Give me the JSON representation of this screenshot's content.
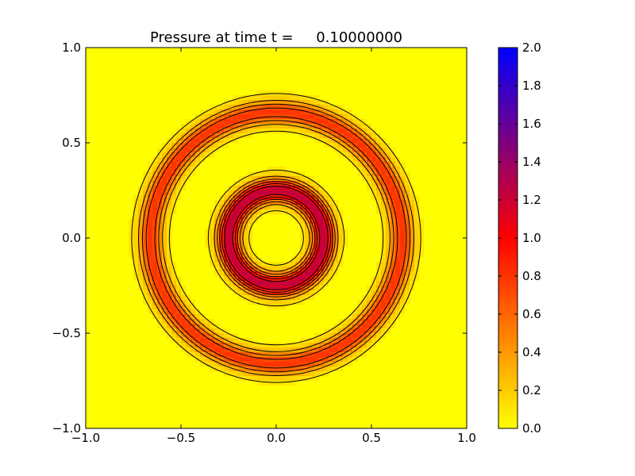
{
  "chart_data": {
    "type": "heatmap",
    "title": "Pressure at time t =     0.10000000",
    "xlabel": "",
    "ylabel": "",
    "xlim": [
      -1.0,
      1.0
    ],
    "ylim": [
      -1.0,
      1.0
    ],
    "x_ticks": [
      "−1.0",
      "−0.5",
      "0.0",
      "0.5",
      "1.0"
    ],
    "x_tick_values": [
      -1.0,
      -0.5,
      0.0,
      0.5,
      1.0
    ],
    "y_ticks": [
      "−1.0",
      "−0.5",
      "0.0",
      "0.5",
      "1.0"
    ],
    "y_tick_values": [
      -1.0,
      -0.5,
      0.0,
      0.5,
      1.0
    ],
    "colorbar": {
      "range": [
        0.0,
        2.0
      ],
      "ticks": [
        "0.0",
        "0.2",
        "0.4",
        "0.6",
        "0.8",
        "1.0",
        "1.2",
        "1.4",
        "1.6",
        "1.8",
        "2.0"
      ],
      "tick_values": [
        0.0,
        0.2,
        0.4,
        0.6,
        0.8,
        1.0,
        1.2,
        1.4,
        1.6,
        1.8,
        2.0
      ],
      "colormap_stops": [
        {
          "value": 0.0,
          "color": "#ffff00"
        },
        {
          "value": 1.0,
          "color": "#ff0000"
        },
        {
          "value": 2.0,
          "color": "#0000ff"
        }
      ]
    },
    "field": {
      "background_value": 0.05,
      "inner_ring": {
        "r_center": 0.25,
        "half_width": 0.06,
        "peak_value": 1.2
      },
      "outer_ring": {
        "r_center": 0.66,
        "half_width": 0.06,
        "peak_value": 0.75
      },
      "contour_levels": [
        0.1,
        0.3,
        0.5,
        0.7,
        0.9,
        1.1
      ]
    }
  }
}
